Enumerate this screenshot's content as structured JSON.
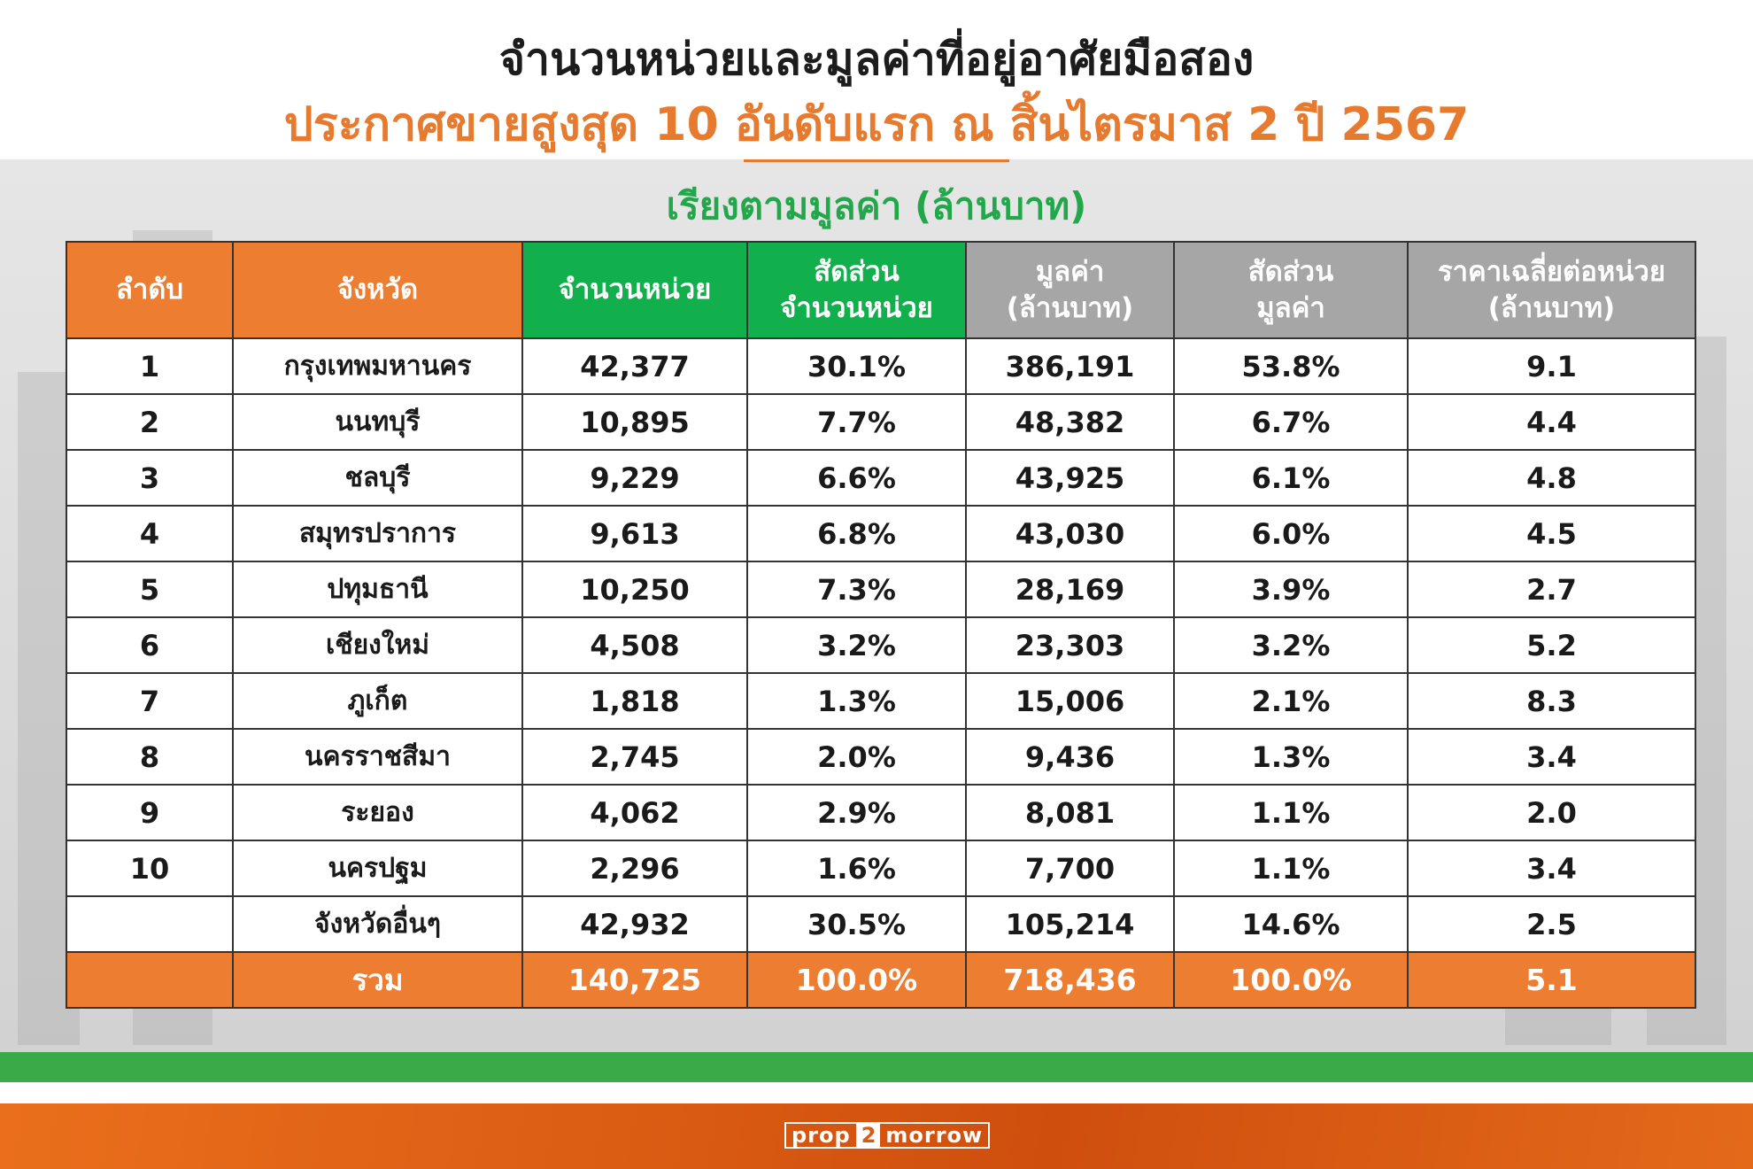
{
  "title": "จำนวนหน่วยและมูลค่าที่อยู่อาศัยมือสอง",
  "subtitle": "ประกาศขายสูงสุด 10 อันดับแรก ณ สิ้นไตรมาส 2 ปี 2567",
  "sort_note": "เรียงตามมูลค่า (ล้านบาท)",
  "colors": {
    "orange": "#ed7d31",
    "green": "#12b04c",
    "gray": "#a6a6a6",
    "footer_orange": "#d95a12",
    "stripe_green": "#3aaa48"
  },
  "brand": {
    "logo_part1": "prop",
    "logo_part2": "2",
    "logo_part3": "morrow"
  },
  "chart_data": {
    "type": "table",
    "title": "จำนวนหน่วยและมูลค่าที่อยู่อาศัยมือสอง",
    "subtitle": "ประกาศขายสูงสุด 10 อันดับแรก ณ สิ้นไตรมาส 2 ปี 2567",
    "columns": [
      {
        "line1": "ลำดับ",
        "line2": ""
      },
      {
        "line1": "จังหวัด",
        "line2": ""
      },
      {
        "line1": "จำนวนหน่วย",
        "line2": ""
      },
      {
        "line1": "สัดส่วน",
        "line2": "จำนวนหน่วย"
      },
      {
        "line1": "มูลค่า",
        "line2": "(ล้านบาท)"
      },
      {
        "line1": "สัดส่วน",
        "line2": "มูลค่า"
      },
      {
        "line1": "ราคาเฉลี่ยต่อหน่วย",
        "line2": "(ล้านบาท)"
      }
    ],
    "rows": [
      {
        "rank": "1",
        "province": "กรุงเทพมหานคร",
        "units": "42,377",
        "unit_share": "30.1%",
        "value": "386,191",
        "value_share": "53.8%",
        "avg_price": "9.1"
      },
      {
        "rank": "2",
        "province": "นนทบุรี",
        "units": "10,895",
        "unit_share": "7.7%",
        "value": "48,382",
        "value_share": "6.7%",
        "avg_price": "4.4"
      },
      {
        "rank": "3",
        "province": "ชลบุรี",
        "units": "9,229",
        "unit_share": "6.6%",
        "value": "43,925",
        "value_share": "6.1%",
        "avg_price": "4.8"
      },
      {
        "rank": "4",
        "province": "สมุทรปราการ",
        "units": "9,613",
        "unit_share": "6.8%",
        "value": "43,030",
        "value_share": "6.0%",
        "avg_price": "4.5"
      },
      {
        "rank": "5",
        "province": "ปทุมธานี",
        "units": "10,250",
        "unit_share": "7.3%",
        "value": "28,169",
        "value_share": "3.9%",
        "avg_price": "2.7"
      },
      {
        "rank": "6",
        "province": "เชียงใหม่",
        "units": "4,508",
        "unit_share": "3.2%",
        "value": "23,303",
        "value_share": "3.2%",
        "avg_price": "5.2"
      },
      {
        "rank": "7",
        "province": "ภูเก็ต",
        "units": "1,818",
        "unit_share": "1.3%",
        "value": "15,006",
        "value_share": "2.1%",
        "avg_price": "8.3"
      },
      {
        "rank": "8",
        "province": "นครราชสีมา",
        "units": "2,745",
        "unit_share": "2.0%",
        "value": "9,436",
        "value_share": "1.3%",
        "avg_price": "3.4"
      },
      {
        "rank": "9",
        "province": "ระยอง",
        "units": "4,062",
        "unit_share": "2.9%",
        "value": "8,081",
        "value_share": "1.1%",
        "avg_price": "2.0"
      },
      {
        "rank": "10",
        "province": "นครปฐม",
        "units": "2,296",
        "unit_share": "1.6%",
        "value": "7,700",
        "value_share": "1.1%",
        "avg_price": "3.4"
      },
      {
        "rank": "",
        "province": "จังหวัดอื่นๆ",
        "units": "42,932",
        "unit_share": "30.5%",
        "value": "105,214",
        "value_share": "14.6%",
        "avg_price": "2.5"
      }
    ],
    "total": {
      "rank": "",
      "province": "รวม",
      "units": "140,725",
      "unit_share": "100.0%",
      "value": "718,436",
      "value_share": "100.0%",
      "avg_price": "5.1"
    }
  }
}
